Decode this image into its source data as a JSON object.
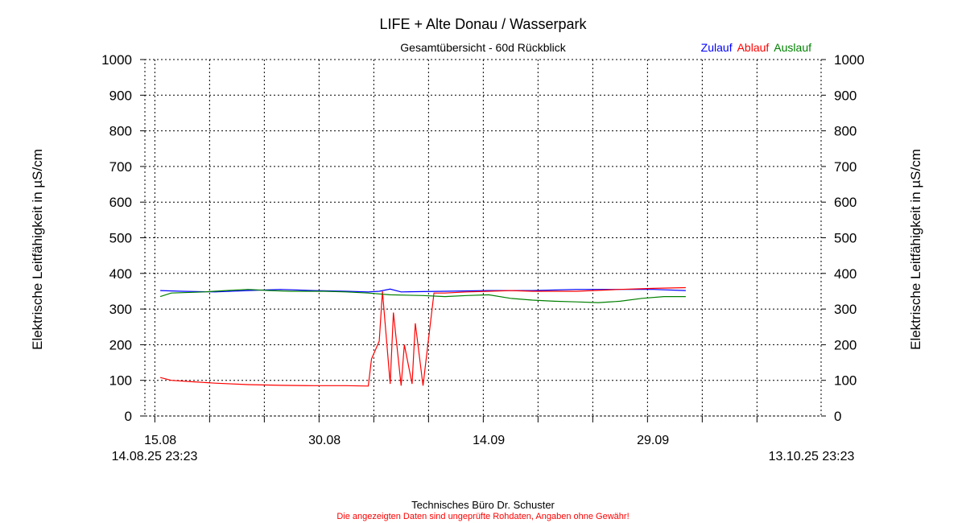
{
  "chart_data": {
    "type": "line",
    "title": "LIFE + Alte Donau / Wasserpark",
    "subtitle": "Gesamtübersicht - 60d Rückblick",
    "ylabel": "Elektrische Leitfähigkeit in µS/cm",
    "ylabel_right": "Elektrische Leitfähigkeit in µS/cm",
    "ylim": [
      0,
      1000
    ],
    "y_ticks": [
      0,
      100,
      200,
      300,
      400,
      500,
      600,
      700,
      800,
      900,
      1000
    ],
    "x_ticks": [
      "15.08",
      "30.08",
      "14.09",
      "29.09"
    ],
    "x_start": "14.08.25 23:23",
    "x_end": "13.10.25 23:23",
    "grid": true,
    "legend_position": "top-right",
    "series": [
      {
        "name": "Zulauf",
        "color": "#0000ff",
        "x": [
          "15.08",
          "17.08",
          "20.08",
          "23.08",
          "26.08",
          "29.08",
          "01.09",
          "03.09",
          "04.09",
          "05.09",
          "06.09",
          "10.09",
          "14.09",
          "18.09",
          "22.09",
          "26.09",
          "29.09",
          "02.10"
        ],
        "y": [
          352,
          350,
          348,
          352,
          355,
          352,
          350,
          348,
          350,
          356,
          348,
          350,
          352,
          352,
          355,
          355,
          355,
          352
        ]
      },
      {
        "name": "Ablauf",
        "color": "#ff0000",
        "x": [
          "15.08",
          "16.08",
          "18.08",
          "20.08",
          "23.08",
          "26.08",
          "29.08",
          "01.09",
          "03.09",
          "03.09",
          "04.09",
          "04.09",
          "05.09",
          "05.09",
          "06.09",
          "06.09",
          "07.09",
          "07.09",
          "08.09",
          "09.09",
          "10.09",
          "12.09",
          "14.09",
          "16.09",
          "18.09",
          "20.09",
          "22.09",
          "26.09",
          "29.09",
          "02.10"
        ],
        "y": [
          108,
          100,
          96,
          92,
          88,
          86,
          85,
          85,
          84,
          160,
          210,
          350,
          90,
          290,
          85,
          200,
          90,
          260,
          85,
          345,
          345,
          348,
          350,
          352,
          350,
          350,
          350,
          355,
          358,
          360
        ]
      },
      {
        "name": "Auslauf",
        "color": "#008000",
        "x": [
          "15.08",
          "16.08",
          "19.08",
          "21.08",
          "23.08",
          "25.08",
          "27.08",
          "30.08",
          "01.09",
          "03.09",
          "05.09",
          "08.09",
          "10.09",
          "12.09",
          "14.09",
          "16.09",
          "18.09",
          "20.09",
          "22.09",
          "24.09",
          "26.09",
          "28.09",
          "30.09",
          "02.10"
        ],
        "y": [
          335,
          345,
          348,
          352,
          355,
          352,
          350,
          350,
          348,
          345,
          340,
          338,
          335,
          338,
          340,
          330,
          325,
          322,
          320,
          318,
          322,
          330,
          335,
          335
        ]
      }
    ]
  },
  "footer": {
    "company": "Technisches Büro Dr. Schuster",
    "disclaimer": "Die angezeigten Daten sind ungeprüfte Rohdaten, Angaben ohne Gewähr!"
  }
}
